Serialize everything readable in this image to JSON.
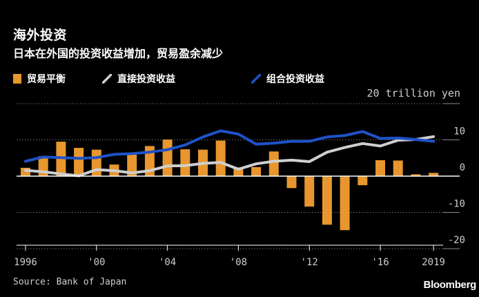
{
  "header": {
    "title": "海外投资",
    "subtitle": "日本在外国的投资收益增加，贸易盈余减少"
  },
  "legend": {
    "items": [
      {
        "label": "贸易平衡",
        "kind": "bar",
        "color": "#e8962e"
      },
      {
        "label": "直接投资收益",
        "kind": "line",
        "color": "#cfcfcf"
      },
      {
        "label": "组合投资收益",
        "kind": "line",
        "color": "#1f52c8"
      }
    ]
  },
  "y_unit": "20 trillion yen",
  "source": "Source: Bank of Japan",
  "brand": "Bloomberg",
  "chart_data": {
    "type": "bar+line",
    "title": "海外投资",
    "subtitle": "日本在外国的投资收益增加，贸易盈余减少",
    "ylabel": "20 trillion yen",
    "ylim": [
      -20,
      20
    ],
    "yticks": [
      -20,
      -10,
      0,
      10
    ],
    "ytick_labels": [
      "-20",
      "-10",
      "0",
      "10"
    ],
    "x": [
      1996,
      1997,
      1998,
      1999,
      2000,
      2001,
      2002,
      2003,
      2004,
      2005,
      2006,
      2007,
      2008,
      2009,
      2010,
      2011,
      2012,
      2013,
      2014,
      2015,
      2016,
      2017,
      2018,
      2019
    ],
    "xticks": [
      1996,
      2000,
      2004,
      2008,
      2012,
      2016,
      2019
    ],
    "xtick_labels": [
      "1996",
      "'00",
      "'04",
      "'08",
      "'12",
      "'16",
      "2019"
    ],
    "series": [
      {
        "name": "贸易平衡",
        "type": "bar",
        "color": "#e8962e",
        "values": [
          2.3,
          5.5,
          9.5,
          7.8,
          7.3,
          3.2,
          5.9,
          8.3,
          10.1,
          7.4,
          7.3,
          9.8,
          2.4,
          2.5,
          6.8,
          -3.3,
          -8.4,
          -13.4,
          -14.9,
          -2.5,
          4.4,
          4.3,
          0.5,
          0.9
        ]
      },
      {
        "name": "直接投资收益",
        "type": "line",
        "color": "#cfcfcf",
        "values": [
          1.6,
          1.2,
          0.6,
          0.1,
          1.8,
          1.5,
          0.9,
          1.5,
          2.8,
          2.9,
          3.5,
          3.8,
          1.9,
          3.4,
          4.1,
          4.4,
          4.0,
          6.6,
          7.9,
          9.0,
          8.3,
          9.9,
          10.1,
          10.9
        ]
      },
      {
        "name": "组合投资收益",
        "type": "line",
        "color": "#1f52c8",
        "values": [
          4.1,
          5.3,
          5.1,
          4.9,
          5.1,
          6.0,
          6.2,
          6.6,
          7.3,
          8.6,
          10.8,
          12.5,
          11.6,
          8.8,
          9.1,
          9.6,
          9.6,
          10.8,
          11.2,
          12.3,
          10.4,
          10.5,
          10.1,
          9.6
        ]
      }
    ]
  }
}
